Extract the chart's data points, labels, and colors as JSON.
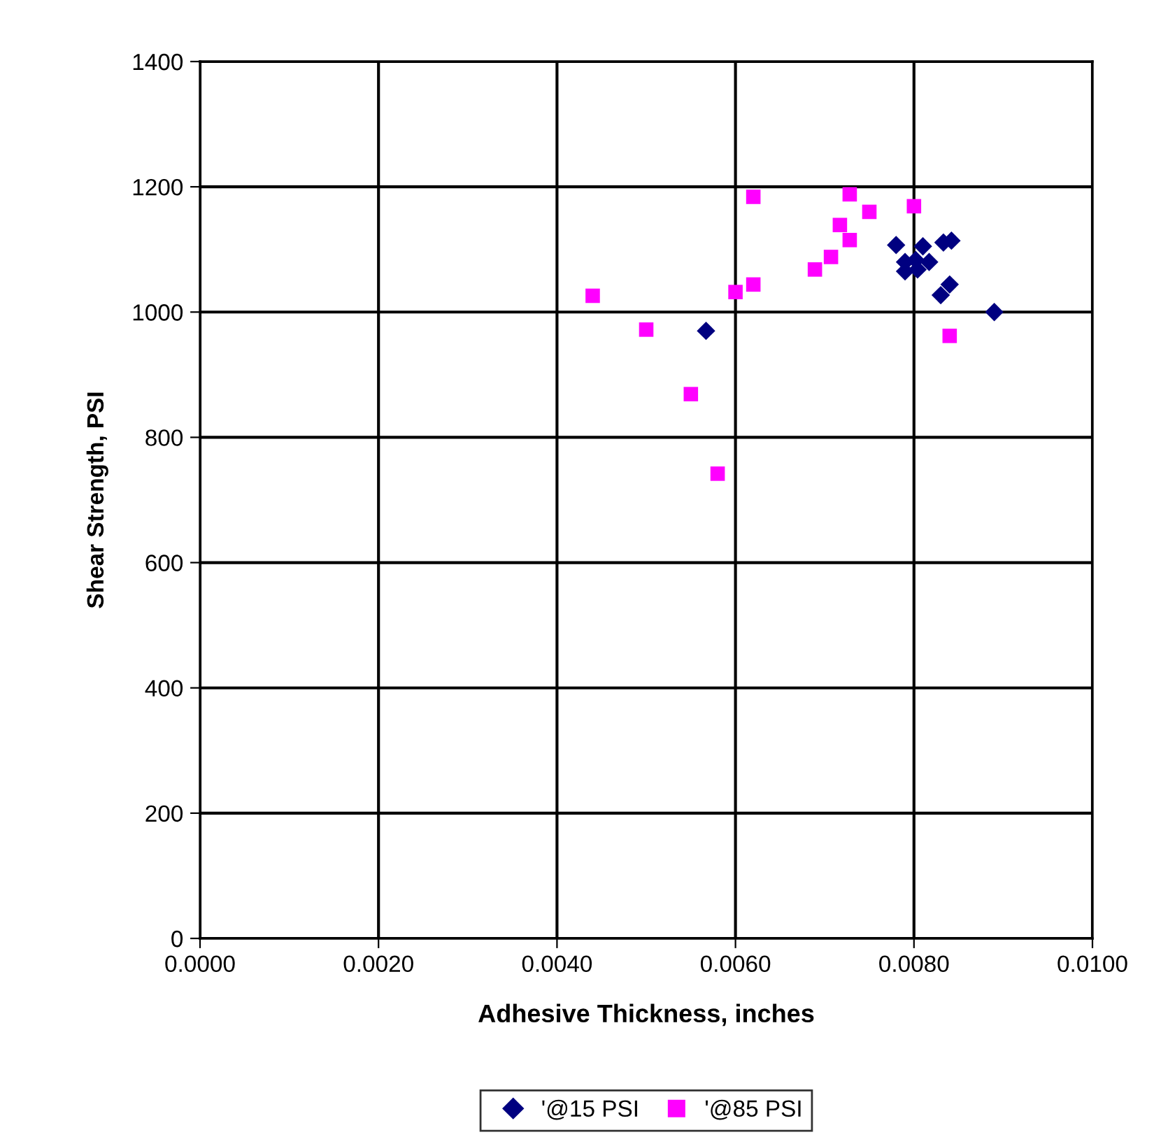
{
  "chart_data": {
    "type": "scatter",
    "xlabel": "Adhesive Thickness, inches",
    "ylabel": "Shear Strength, PSI",
    "xlim": [
      0,
      0.01
    ],
    "xticks": [
      {
        "value": 0,
        "label": "0.0000"
      },
      {
        "value": 0.002,
        "label": "0.0020"
      },
      {
        "value": 0.004,
        "label": "0.0040"
      },
      {
        "value": 0.006,
        "label": "0.0060"
      },
      {
        "value": 0.008,
        "label": "0.0080"
      },
      {
        "value": 0.01,
        "label": "0.0100"
      }
    ],
    "ylim": [
      0,
      1400
    ],
    "yticks": [
      0,
      200,
      400,
      600,
      800,
      1000,
      1200,
      1400
    ],
    "grid": true,
    "legend": "bottom",
    "series": [
      {
        "name": "'@15 PSI",
        "color": "#000080",
        "marker": "diamond",
        "x": [
          0.00567,
          0.0089,
          0.0078,
          0.00833,
          0.00842,
          0.0084,
          0.0083,
          0.0081,
          0.00797,
          0.0079,
          0.0079,
          0.00804,
          0.00817,
          0.00802
        ],
        "values": [
          970,
          1000,
          1107,
          1111,
          1114,
          1044,
          1027,
          1105,
          null,
          1080,
          1065,
          1068,
          1080,
          1083
        ]
      },
      {
        "name": "'@85 PSI",
        "color": "#ff00ff",
        "marker": "square",
        "x": [
          0.0062,
          0.00728,
          0.0075,
          0.008,
          0.00717,
          0.00728,
          0.00707,
          0.00689,
          0.0062,
          0.006,
          0.0044,
          0.005,
          0.0084,
          0.0055,
          0.0058
        ],
        "values": [
          1184,
          1188,
          1160,
          1169,
          1139,
          1115,
          1088,
          1068,
          1044,
          1032,
          1026,
          972,
          962,
          869,
          742
        ]
      }
    ]
  }
}
